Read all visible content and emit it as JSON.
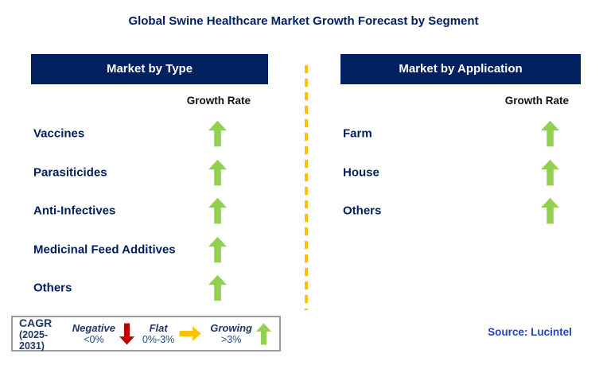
{
  "title": "Global Swine Healthcare Market Growth Forecast by Segment",
  "panels": [
    {
      "header": "Market by Type",
      "growth_rate_label": "Growth Rate",
      "items": [
        {
          "label": "Vaccines",
          "trend": "growing"
        },
        {
          "label": "Parasiticides",
          "trend": "growing"
        },
        {
          "label": "Anti-Infectives",
          "trend": "growing"
        },
        {
          "label": "Medicinal Feed Additives",
          "trend": "growing"
        },
        {
          "label": "Others",
          "trend": "growing"
        }
      ]
    },
    {
      "header": "Market by Application",
      "growth_rate_label": "Growth Rate",
      "items": [
        {
          "label": "Farm",
          "trend": "growing"
        },
        {
          "label": "House",
          "trend": "growing"
        },
        {
          "label": "Others",
          "trend": "growing"
        }
      ]
    }
  ],
  "legend": {
    "cagr_label": "CAGR",
    "cagr_period": "(2025-2031)",
    "entries": [
      {
        "label": "Negative",
        "range": "<0%",
        "direction": "down",
        "color": "#C00000"
      },
      {
        "label": "Flat",
        "range": "0%-3%",
        "direction": "right",
        "color": "#FFC000"
      },
      {
        "label": "Growing",
        "range": ">3%",
        "direction": "up",
        "color": "#92D050"
      }
    ]
  },
  "source": "Source: Lucintel",
  "colors": {
    "navy": "#002060",
    "growing_green": "#92D050",
    "negative_red": "#C00000",
    "flat_yellow": "#FFC000",
    "divider_yellow": "#FFC000",
    "source_blue": "#2442C8"
  },
  "chart_data": {
    "type": "table",
    "title": "Global Swine Healthcare Market Growth Forecast by Segment",
    "legend": "CAGR (2025-2031): Negative <0% (down arrow), Flat 0%-3% (right arrow), Growing >3% (up arrow)",
    "groups": [
      {
        "name": "Market by Type",
        "value_column": "Growth Rate",
        "categories": [
          "Vaccines",
          "Parasiticides",
          "Anti-Infectives",
          "Medicinal Feed Additives",
          "Others"
        ],
        "growth_rates": [
          "Growing (>3%)",
          "Growing (>3%)",
          "Growing (>3%)",
          "Growing (>3%)",
          "Growing (>3%)"
        ]
      },
      {
        "name": "Market by Application",
        "value_column": "Growth Rate",
        "categories": [
          "Farm",
          "House",
          "Others"
        ],
        "growth_rates": [
          "Growing (>3%)",
          "Growing (>3%)",
          "Growing (>3%)"
        ]
      }
    ],
    "source": "Lucintel"
  }
}
